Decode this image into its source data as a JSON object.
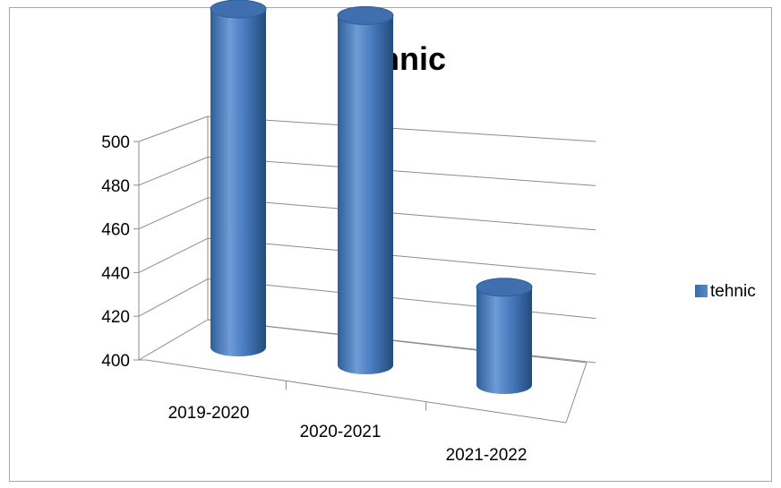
{
  "chart_data": {
    "type": "bar",
    "style": "3d-cylinder",
    "title": "tehnic",
    "categories": [
      "2019-2020",
      "2020-2021",
      "2021-2022"
    ],
    "series": [
      {
        "name": "tehnic",
        "values": [
          490,
          493,
          426
        ],
        "color": "#4f81bd"
      }
    ],
    "yticks": [
      "400",
      "420",
      "440",
      "460",
      "480",
      "500"
    ],
    "ylim": [
      400,
      500
    ],
    "grid": true,
    "legend": "right"
  }
}
